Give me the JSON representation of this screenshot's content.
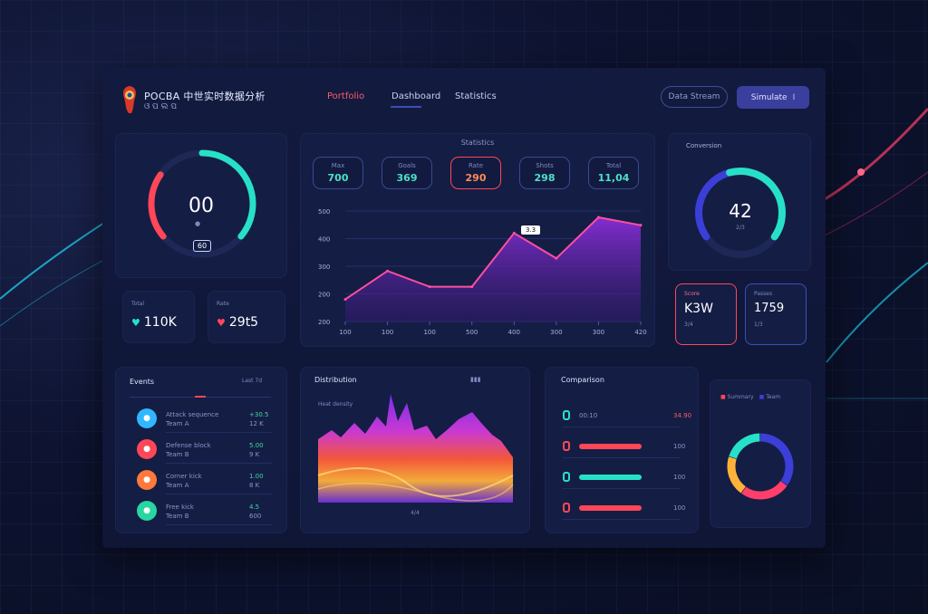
{
  "header": {
    "logo_line1": "POCBA 中世实时数据分析",
    "logo_line2": "ଓ ପ ଲ ପ",
    "nav": [
      {
        "label": "Portfolio",
        "active": true
      },
      {
        "label": "Dashboard",
        "active": false
      },
      {
        "label": "Statistics",
        "active": false
      }
    ],
    "outline_button": "Data Stream",
    "solid_button": "Simulate",
    "solid_button_icon": "I"
  },
  "gauge_left": {
    "value": "00",
    "badge": "60",
    "colors": [
      "#ff4757",
      "#27e0c8"
    ]
  },
  "small_stats": [
    {
      "label": "Total",
      "value": "110K",
      "icon": "heart-icon",
      "color": "#27e0c8"
    },
    {
      "label": "Rate",
      "value": "29t5",
      "icon": "heart-icon",
      "color": "#ff4757"
    }
  ],
  "main_chart": {
    "title": "Statistics",
    "chips": [
      {
        "label": "Max",
        "value": "700"
      },
      {
        "label": "Goals",
        "value": "369"
      },
      {
        "label": "Rate",
        "value": "290",
        "highlight": true
      },
      {
        "label": "Shots",
        "value": "298"
      },
      {
        "label": "Total",
        "value": "11,04"
      }
    ],
    "tooltip": "3.3"
  },
  "chart_data": {
    "type": "area",
    "categories": [
      "100",
      "100",
      "100",
      "500",
      "400",
      "300",
      "300",
      "420"
    ],
    "values": [
      270,
      360,
      310,
      310,
      480,
      400,
      530,
      505
    ],
    "y_ticks": [
      "500",
      "400",
      "300",
      "200",
      "200"
    ],
    "ylim": [
      200,
      550
    ],
    "grid": true,
    "line_color": "#ff4fa0",
    "fill_color": "#8a2ed8"
  },
  "gauge_right": {
    "title": "Conversion",
    "value": "42",
    "unit": "2/3",
    "colors": [
      "#3b3fd8",
      "#27e0c8"
    ]
  },
  "right_cards": [
    {
      "label": "Score",
      "value": "K3W",
      "sub": "3/4",
      "border": "#ff4757"
    },
    {
      "label": "Passes",
      "value": "1759",
      "sub": "1/3",
      "border": "#3b4fb8"
    }
  ],
  "list_panel": {
    "title": "Events",
    "meta": "Last 7d",
    "rows": [
      {
        "color": "#2fb8ff",
        "text": "Attack sequence",
        "sub": "Team A",
        "value": "+30.5",
        "value_color": "#46d6a5",
        "sub_value": "12 K"
      },
      {
        "color": "#ff4757",
        "text": "Defense block",
        "sub": "Team B",
        "value": "5.00",
        "value_color": "#46d6a5",
        "sub_value": "9 K"
      },
      {
        "color": "#ff7a3a",
        "text": "Corner kick",
        "sub": "Team A",
        "value": "1.00",
        "value_color": "#46d6a5",
        "sub_value": "8 K"
      },
      {
        "color": "#27d6a0",
        "text": "Free kick",
        "sub": "Team B",
        "value": "4.5",
        "value_color": "#46d6a5",
        "sub_value": "600"
      }
    ]
  },
  "heatmap_panel": {
    "title": "Distribution",
    "subtitle": "Heat density",
    "footer": "4/4"
  },
  "bars_panel": {
    "title": "Comparison",
    "rows": [
      {
        "label": "00:10",
        "value": "34.90",
        "color": "#27e0c8",
        "fill": 0
      },
      {
        "label": "",
        "value": "100",
        "color": "#ff4757",
        "fill": 0.6
      },
      {
        "label": "",
        "value": "100",
        "color": "#27e0c8",
        "fill": 0.6
      },
      {
        "label": "",
        "value": "100",
        "color": "#ff4757",
        "fill": 0.6
      }
    ]
  },
  "donut_panel": {
    "legend": "Summary",
    "legend2": "Team",
    "slices": [
      {
        "value": 0.35,
        "color": "#3b3fd8"
      },
      {
        "value": 0.25,
        "color": "#ff3f6a"
      },
      {
        "value": 0.2,
        "color": "#ffb23a"
      },
      {
        "value": 0.2,
        "color": "#27e0c8"
      }
    ]
  }
}
